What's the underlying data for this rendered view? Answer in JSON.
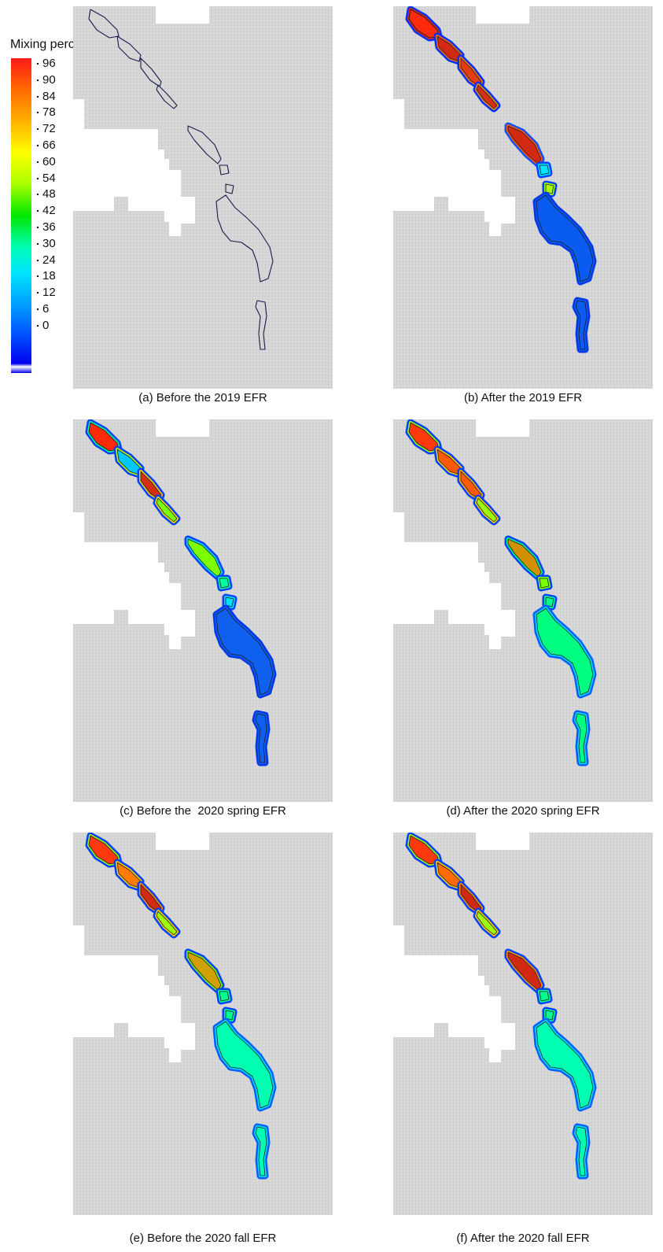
{
  "legend": {
    "title": "Mixing percentage%",
    "ticks": [
      "96",
      "90",
      "84",
      "78",
      "72",
      "66",
      "60",
      "54",
      "48",
      "42",
      "36",
      "30",
      "24",
      "18",
      "12",
      "6",
      "0"
    ]
  },
  "panels": [
    {
      "id": "a",
      "caption": "(a) Before the 2019 EFR",
      "state": "outline"
    },
    {
      "id": "b",
      "caption": "(b) After the 2019 EFR",
      "state": "after2019"
    },
    {
      "id": "c",
      "caption": "(c) Before the  2020 spring EFR",
      "state": "beforeSpring"
    },
    {
      "id": "d",
      "caption": "(d) After the 2020 spring EFR",
      "state": "afterSpring"
    },
    {
      "id": "e",
      "caption": "(e) Before the 2020 fall EFR",
      "state": "beforeFall"
    },
    {
      "id": "f",
      "caption": "(f) After the 2020 fall EFR",
      "state": "afterFall"
    }
  ],
  "colors": {
    "grid_bg": "#d9d9d9",
    "grid_line": "#bdbdbd",
    "outline": "#1a1a4a",
    "scale_low": "#0000ee",
    "scale_high": "#ff1a1a"
  }
}
